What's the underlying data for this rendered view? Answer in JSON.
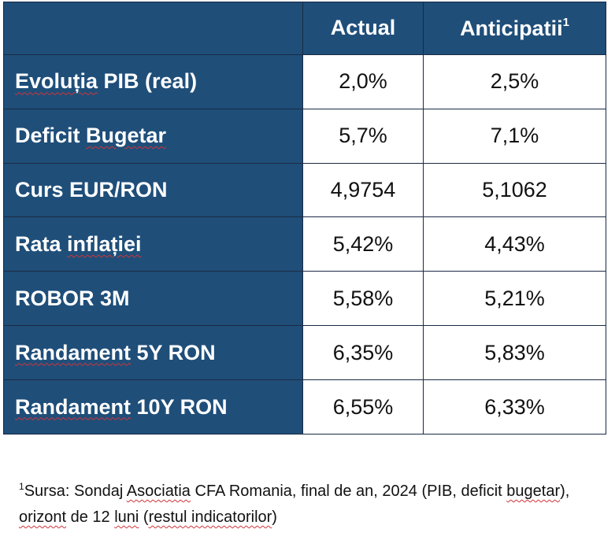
{
  "table": {
    "headers": [
      "",
      "Actual",
      "Anticipatii",
      "1"
    ],
    "rows": [
      {
        "label_a": "Evoluția",
        "label_b": " PIB (real)",
        "actual": "2,0%",
        "forecast": "2,5%"
      },
      {
        "label_a": "Deficit ",
        "label_b": "Bugetar",
        "actual": "5,7%",
        "forecast": "7,1%"
      },
      {
        "label_a": "Curs EUR/RON",
        "label_b": "",
        "actual": "4,9754",
        "forecast": "5,1062"
      },
      {
        "label_a": "Rata ",
        "label_b": "inflației",
        "actual": "5,42%",
        "forecast": "4,43%"
      },
      {
        "label_a": "ROBOR 3M",
        "label_b": "",
        "actual": "5,58%",
        "forecast": "5,21%"
      },
      {
        "label_a": "Randament",
        "label_b": " 5Y RON",
        "actual": "6,35%",
        "forecast": "5,83%"
      },
      {
        "label_a": "Randament",
        "label_b": " 10Y RON",
        "actual": "6,55%",
        "forecast": "6,33%"
      }
    ]
  },
  "footnote": {
    "marker": "1",
    "p1": "Sursa: Sondaj ",
    "p2": "Asociatia",
    "p3": " CFA Romania, final de an, 2024 (PIB, deficit ",
    "p4": "bugetar",
    "p5": "), ",
    "p6": "orizont",
    "p7": " de 12 ",
    "p8": "luni",
    "p9": " (",
    "p10": "restul indicatorilor",
    "p11": ")"
  }
}
